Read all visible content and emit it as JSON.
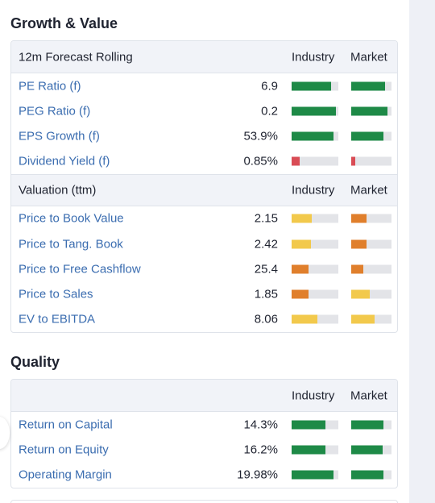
{
  "growth": {
    "title": "Growth & Value",
    "forecast_header": {
      "label": "12m Forecast Rolling",
      "industry": "Industry",
      "market": "Market"
    },
    "forecast_rows": [
      {
        "name": "PE Ratio (f)",
        "value": "6.9",
        "industry_fill": 0.85,
        "industry_color": "#1e8a47",
        "market_fill": 0.84,
        "market_color": "#1e8a47"
      },
      {
        "name": "PEG Ratio (f)",
        "value": "0.2",
        "industry_fill": 0.95,
        "industry_color": "#1e8a47",
        "market_fill": 0.9,
        "market_color": "#1e8a47"
      },
      {
        "name": "EPS Growth (f)",
        "value": "53.9%",
        "industry_fill": 0.9,
        "industry_color": "#1e8a47",
        "market_fill": 0.8,
        "market_color": "#1e8a47"
      },
      {
        "name": "Dividend Yield (f)",
        "value": "0.85%",
        "industry_fill": 0.17,
        "industry_color": "#d94c55",
        "market_fill": 0.1,
        "market_color": "#d94c55"
      }
    ],
    "valuation_header": {
      "label": "Valuation (ttm)",
      "industry": "Industry",
      "market": "Market"
    },
    "valuation_rows": [
      {
        "name": "Price to Book Value",
        "value": "2.15",
        "industry_fill": 0.43,
        "industry_color": "#f2c94c",
        "market_fill": 0.38,
        "market_color": "#e07f2c"
      },
      {
        "name": "Price to Tang. Book",
        "value": "2.42",
        "industry_fill": 0.41,
        "industry_color": "#f2c94c",
        "market_fill": 0.38,
        "market_color": "#e07f2c"
      },
      {
        "name": "Price to Free Cashflow",
        "value": "25.4",
        "industry_fill": 0.36,
        "industry_color": "#e07f2c",
        "market_fill": 0.3,
        "market_color": "#e07f2c"
      },
      {
        "name": "Price to Sales",
        "value": "1.85",
        "industry_fill": 0.36,
        "industry_color": "#e07f2c",
        "market_fill": 0.46,
        "market_color": "#f2c94c"
      },
      {
        "name": "EV to EBITDA",
        "value": "8.06",
        "industry_fill": 0.55,
        "industry_color": "#f2c94c",
        "market_fill": 0.58,
        "market_color": "#f2c94c"
      }
    ]
  },
  "quality": {
    "title": "Quality",
    "header": {
      "label": "",
      "industry": "Industry",
      "market": "Market"
    },
    "rows": [
      {
        "name": "Return on Capital",
        "value": "14.3%",
        "industry_fill": 0.72,
        "industry_color": "#1e8a47",
        "market_fill": 0.8,
        "market_color": "#1e8a47"
      },
      {
        "name": "Return on Equity",
        "value": "16.2%",
        "industry_fill": 0.72,
        "industry_color": "#1e8a47",
        "market_fill": 0.78,
        "market_color": "#1e8a47"
      },
      {
        "name": "Operating Margin",
        "value": "19.98%",
        "industry_fill": 0.9,
        "industry_color": "#1e8a47",
        "market_fill": 0.8,
        "market_color": "#1e8a47"
      }
    ]
  }
}
